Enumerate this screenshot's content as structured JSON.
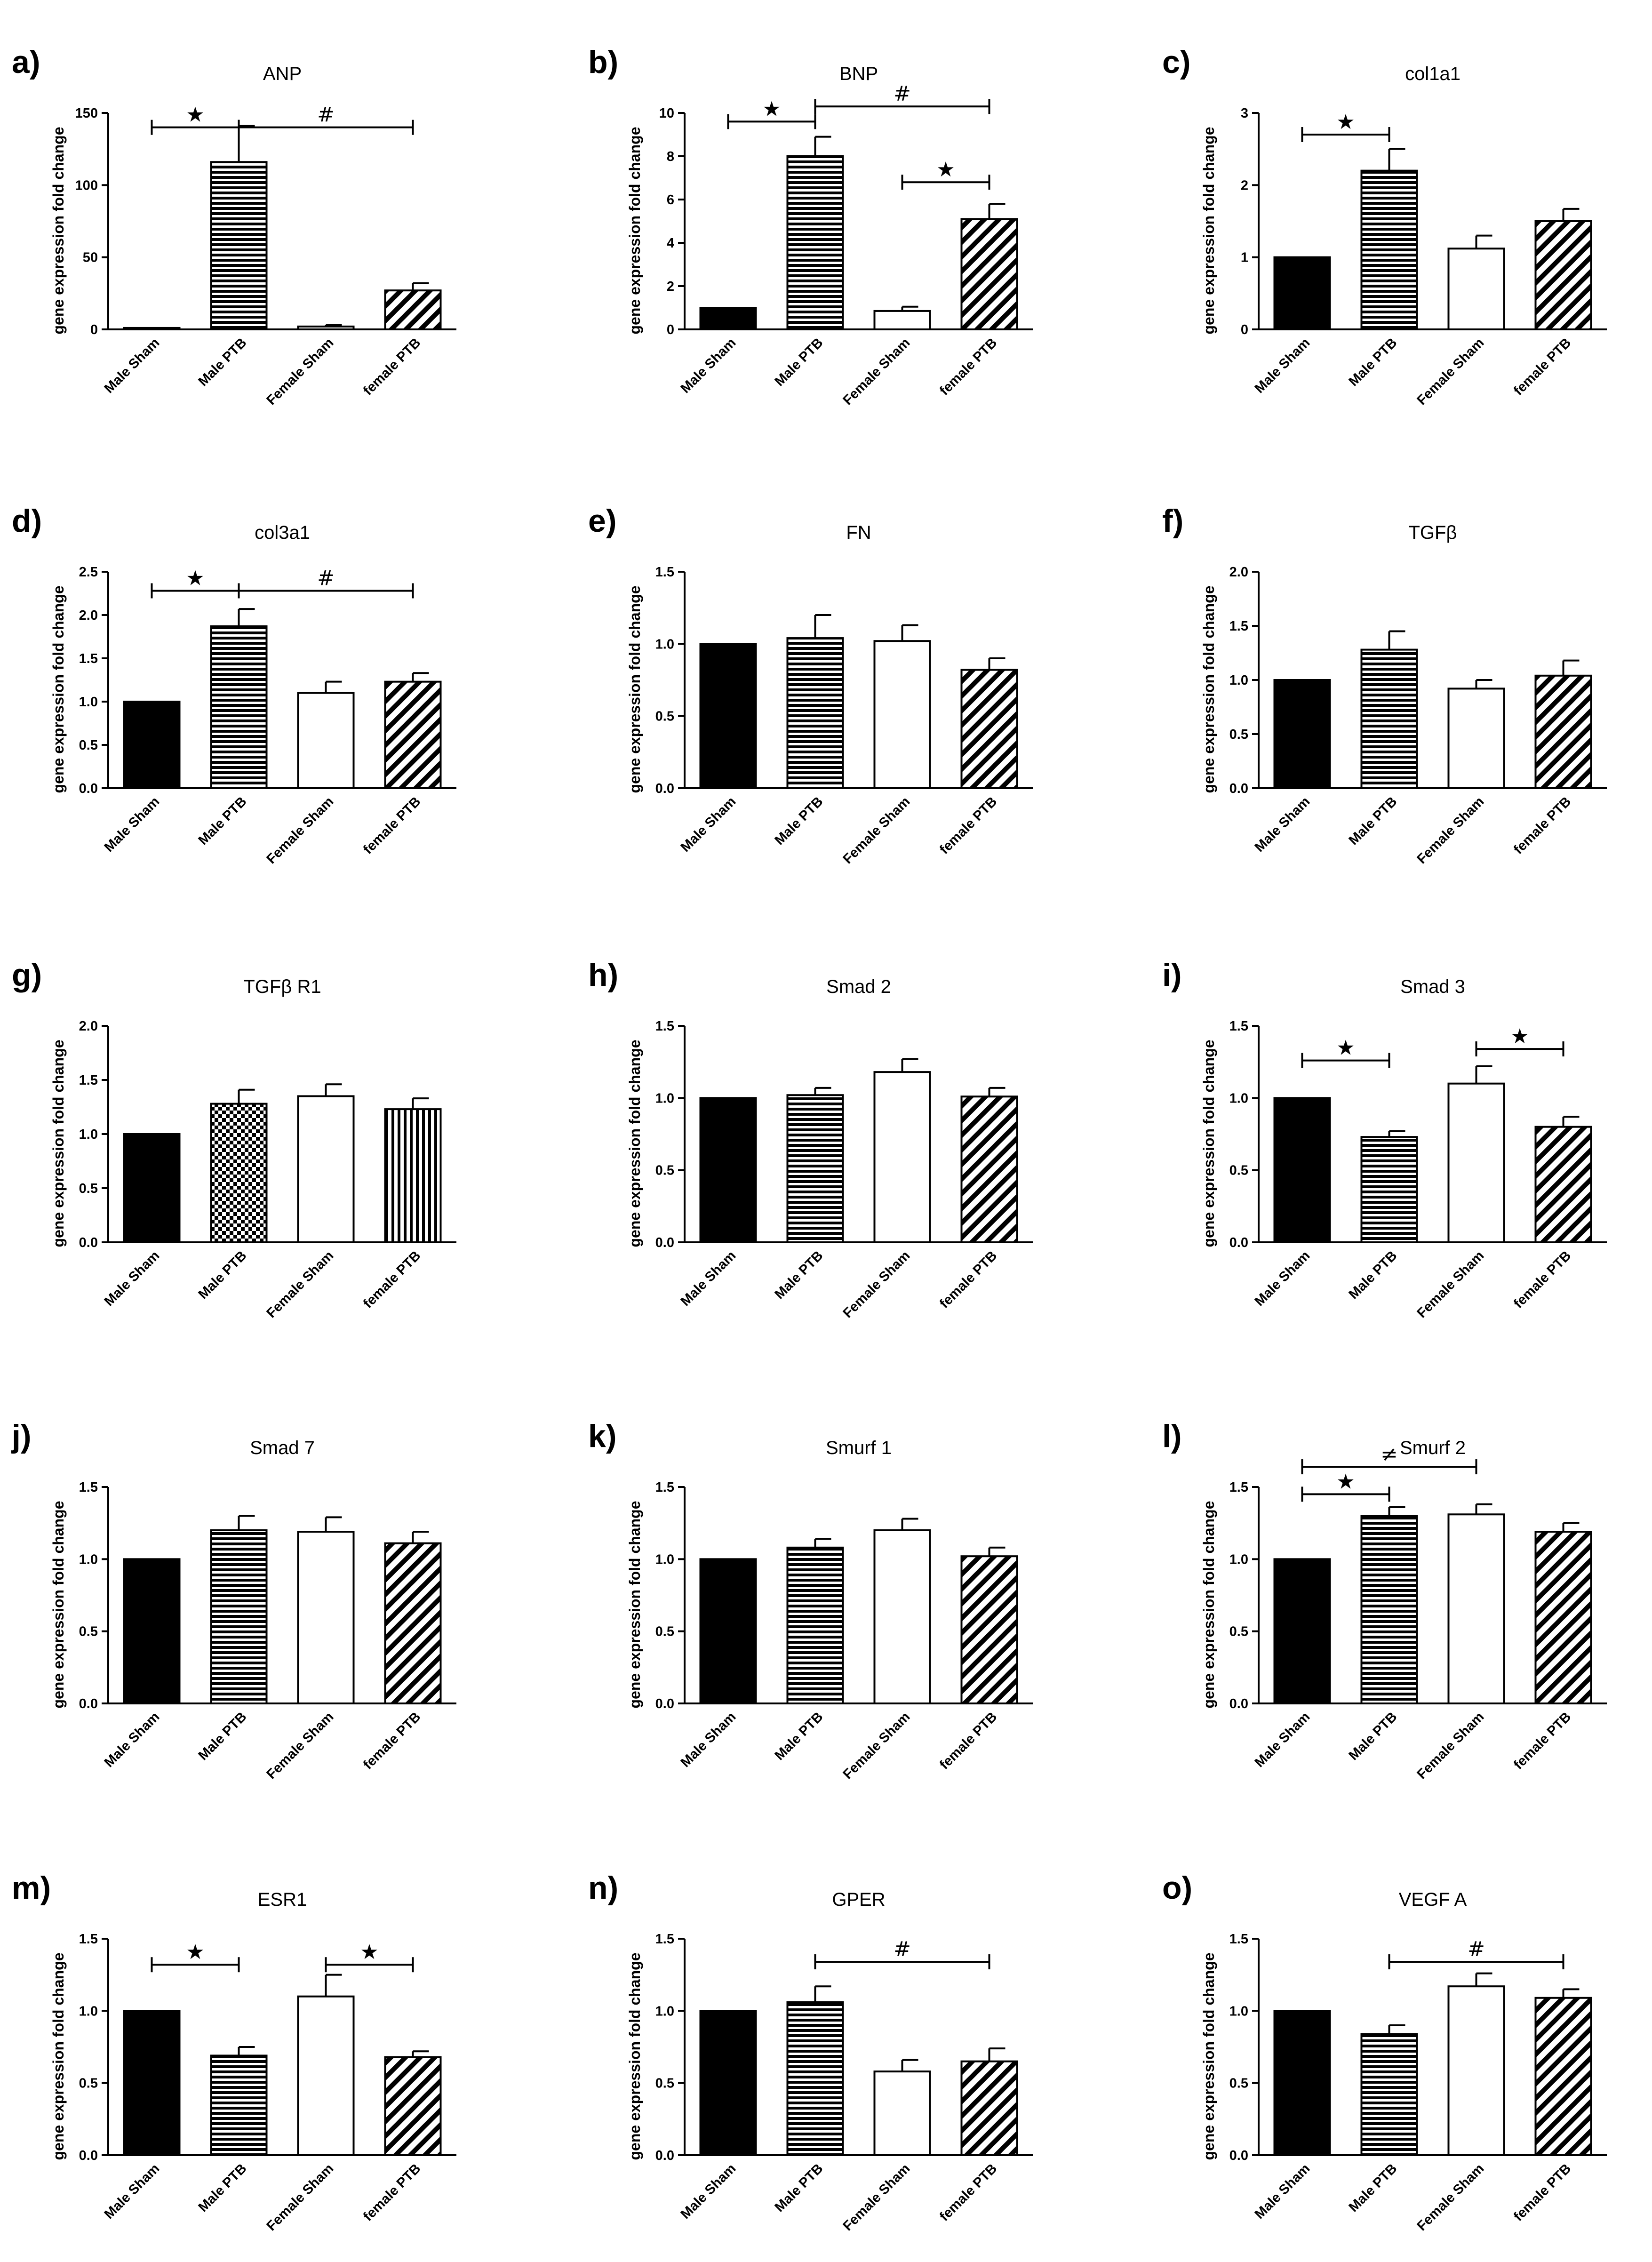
{
  "figure": {
    "y_axis_label": "gene expression fold change",
    "groups": [
      "Male Sham",
      "Male PTB",
      "Female Sham",
      "female PTB"
    ]
  },
  "chart_data": [
    {
      "id": "a",
      "panel_label": "a)",
      "type": "bar",
      "title": "ANP",
      "categories": [
        "Male Sham",
        "Male PTB",
        "Female Sham",
        "female PTB"
      ],
      "values": [
        1,
        116,
        2,
        27
      ],
      "errors": [
        0,
        25,
        1,
        5
      ],
      "ylim": [
        0,
        150
      ],
      "yticks": [
        "0",
        "50",
        "100",
        "150"
      ],
      "ylabel": "gene expression fold change",
      "significance": [
        {
          "from": 0,
          "to": 1,
          "symbol": "★",
          "level": 140
        },
        {
          "from": 1,
          "to": 3,
          "symbol": "#",
          "level": 140
        }
      ]
    },
    {
      "id": "b",
      "panel_label": "b)",
      "type": "bar",
      "title": "BNP",
      "categories": [
        "Male Sham",
        "Male PTB",
        "Female Sham",
        "female PTB"
      ],
      "values": [
        1,
        8,
        0.85,
        5.1
      ],
      "errors": [
        0,
        0.9,
        0.2,
        0.7
      ],
      "ylim": [
        0,
        10
      ],
      "yticks": [
        "0",
        "2",
        "4",
        "6",
        "8",
        "10"
      ],
      "ylabel": "gene expression fold change",
      "significance": [
        {
          "from": 0,
          "to": 1,
          "symbol": "★",
          "level": 9.6
        },
        {
          "from": 1,
          "to": 3,
          "symbol": "#",
          "level": 10.3
        },
        {
          "from": 2,
          "to": 3,
          "symbol": "★",
          "level": 6.8
        }
      ]
    },
    {
      "id": "c",
      "panel_label": "c)",
      "type": "bar",
      "title": "col1a1",
      "categories": [
        "Male Sham",
        "Male PTB",
        "Female Sham",
        "female PTB"
      ],
      "values": [
        1,
        2.2,
        1.12,
        1.5
      ],
      "errors": [
        0,
        0.3,
        0.18,
        0.17
      ],
      "ylim": [
        0,
        3
      ],
      "yticks": [
        "0",
        "1",
        "2",
        "3"
      ],
      "ylabel": "gene expression fold change",
      "significance": [
        {
          "from": 0,
          "to": 1,
          "symbol": "★",
          "level": 2.7
        }
      ]
    },
    {
      "id": "d",
      "panel_label": "d)",
      "type": "bar",
      "title": "col3a1",
      "categories": [
        "Male Sham",
        "Male PTB",
        "Female Sham",
        "female PTB"
      ],
      "values": [
        1,
        1.87,
        1.1,
        1.23
      ],
      "errors": [
        0,
        0.2,
        0.13,
        0.1
      ],
      "ylim": [
        0,
        2.5
      ],
      "yticks": [
        "0.0",
        "0.5",
        "1.0",
        "1.5",
        "2.0",
        "2.5"
      ],
      "ylabel": "gene expression fold change",
      "significance": [
        {
          "from": 0,
          "to": 1,
          "symbol": "★",
          "level": 2.28
        },
        {
          "from": 1,
          "to": 3,
          "symbol": "#",
          "level": 2.28
        }
      ]
    },
    {
      "id": "e",
      "panel_label": "e)",
      "type": "bar",
      "title": "FN",
      "categories": [
        "Male Sham",
        "Male PTB",
        "Female Sham",
        "female PTB"
      ],
      "values": [
        1,
        1.04,
        1.02,
        0.82
      ],
      "errors": [
        0,
        0.16,
        0.11,
        0.08
      ],
      "ylim": [
        0,
        1.5
      ],
      "yticks": [
        "0.0",
        "0.5",
        "1.0",
        "1.5"
      ],
      "ylabel": "gene expression fold change",
      "significance": []
    },
    {
      "id": "f",
      "panel_label": "f)",
      "type": "bar",
      "title": "TGFβ",
      "categories": [
        "Male Sham",
        "Male PTB",
        "Female Sham",
        "female PTB"
      ],
      "values": [
        1,
        1.28,
        0.92,
        1.04
      ],
      "errors": [
        0,
        0.17,
        0.08,
        0.14
      ],
      "ylim": [
        0,
        2
      ],
      "yticks": [
        "0.0",
        "0.5",
        "1.0",
        "1.5",
        "2.0"
      ],
      "ylabel": "gene expression fold change",
      "significance": []
    },
    {
      "id": "g",
      "panel_label": "g)",
      "type": "bar",
      "title": "TGFβ R1",
      "categories": [
        "Male Sham",
        "Male PTB",
        "Female Sham",
        "female PTB"
      ],
      "values": [
        1,
        1.28,
        1.35,
        1.23
      ],
      "errors": [
        0,
        0.13,
        0.11,
        0.1
      ],
      "ylim": [
        0,
        2
      ],
      "yticks": [
        "0.0",
        "0.5",
        "1.0",
        "1.5",
        "2.0"
      ],
      "ylabel": "gene expression fold change",
      "significance": []
    },
    {
      "id": "h",
      "panel_label": "h)",
      "type": "bar",
      "title": "Smad 2",
      "categories": [
        "Male Sham",
        "Male PTB",
        "Female Sham",
        "female PTB"
      ],
      "values": [
        1,
        1.02,
        1.18,
        1.01
      ],
      "errors": [
        0,
        0.05,
        0.09,
        0.06
      ],
      "ylim": [
        0,
        1.5
      ],
      "yticks": [
        "0.0",
        "0.5",
        "1.0",
        "1.5"
      ],
      "ylabel": "gene expression fold change",
      "significance": []
    },
    {
      "id": "i",
      "panel_label": "i)",
      "type": "bar",
      "title": "Smad 3",
      "categories": [
        "Male Sham",
        "Male PTB",
        "Female Sham",
        "female PTB"
      ],
      "values": [
        1,
        0.73,
        1.1,
        0.8
      ],
      "errors": [
        0,
        0.04,
        0.12,
        0.07
      ],
      "ylim": [
        0,
        1.5
      ],
      "yticks": [
        "0.0",
        "0.5",
        "1.0",
        "1.5"
      ],
      "ylabel": "gene expression fold change",
      "significance": [
        {
          "from": 0,
          "to": 1,
          "symbol": "★",
          "level": 1.26
        },
        {
          "from": 2,
          "to": 3,
          "symbol": "★",
          "level": 1.34
        }
      ]
    },
    {
      "id": "j",
      "panel_label": "j)",
      "type": "bar",
      "title": "Smad 7",
      "categories": [
        "Male Sham",
        "Male PTB",
        "Female Sham",
        "female PTB"
      ],
      "values": [
        1,
        1.2,
        1.19,
        1.11
      ],
      "errors": [
        0,
        0.1,
        0.1,
        0.08
      ],
      "ylim": [
        0,
        1.5
      ],
      "yticks": [
        "0.0",
        "0.5",
        "1.0",
        "1.5"
      ],
      "ylabel": "gene expression fold change",
      "significance": []
    },
    {
      "id": "k",
      "panel_label": "k)",
      "type": "bar",
      "title": "Smurf 1",
      "categories": [
        "Male Sham",
        "Male PTB",
        "Female Sham",
        "female PTB"
      ],
      "values": [
        1,
        1.08,
        1.2,
        1.02
      ],
      "errors": [
        0,
        0.06,
        0.08,
        0.06
      ],
      "ylim": [
        0,
        1.5
      ],
      "yticks": [
        "0.0",
        "0.5",
        "1.0",
        "1.5"
      ],
      "ylabel": "gene expression fold change",
      "significance": []
    },
    {
      "id": "l",
      "panel_label": "l)",
      "type": "bar",
      "title": "Smurf 2",
      "categories": [
        "Male Sham",
        "Male PTB",
        "Female Sham",
        "female PTB"
      ],
      "values": [
        1,
        1.3,
        1.31,
        1.19
      ],
      "errors": [
        0,
        0.06,
        0.07,
        0.06
      ],
      "ylim": [
        0,
        1.5
      ],
      "yticks": [
        "0.0",
        "0.5",
        "1.0",
        "1.5"
      ],
      "ylabel": "gene expression fold change",
      "significance": [
        {
          "from": 0,
          "to": 1,
          "symbol": "★",
          "level": 1.45
        },
        {
          "from": 0,
          "to": 2,
          "symbol": "≠",
          "level": 1.64
        }
      ]
    },
    {
      "id": "m",
      "panel_label": "m)",
      "type": "bar",
      "title": "ESR1",
      "categories": [
        "Male Sham",
        "Male PTB",
        "Female Sham",
        "female PTB"
      ],
      "values": [
        1,
        0.69,
        1.1,
        0.68
      ],
      "errors": [
        0,
        0.06,
        0.15,
        0.04
      ],
      "ylim": [
        0,
        1.5
      ],
      "yticks": [
        "0.0",
        "0.5",
        "1.0",
        "1.5"
      ],
      "ylabel": "gene expression fold change",
      "significance": [
        {
          "from": 0,
          "to": 1,
          "symbol": "★",
          "level": 1.32
        },
        {
          "from": 2,
          "to": 3,
          "symbol": "★",
          "level": 1.32
        }
      ]
    },
    {
      "id": "n",
      "panel_label": "n)",
      "type": "bar",
      "title": "GPER",
      "categories": [
        "Male Sham",
        "Male PTB",
        "Female Sham",
        "female PTB"
      ],
      "values": [
        1,
        1.06,
        0.58,
        0.65
      ],
      "errors": [
        0,
        0.11,
        0.08,
        0.09
      ],
      "ylim": [
        0,
        1.5
      ],
      "yticks": [
        "0.0",
        "0.5",
        "1.0",
        "1.5"
      ],
      "ylabel": "gene expression fold change",
      "significance": [
        {
          "from": 1,
          "to": 3,
          "symbol": "#",
          "level": 1.34
        }
      ]
    },
    {
      "id": "o",
      "panel_label": "o)",
      "type": "bar",
      "title": "VEGF A",
      "categories": [
        "Male Sham",
        "Male PTB",
        "Female Sham",
        "female PTB"
      ],
      "values": [
        1,
        0.84,
        1.17,
        1.09
      ],
      "errors": [
        0,
        0.06,
        0.09,
        0.06
      ],
      "ylim": [
        0,
        1.5
      ],
      "yticks": [
        "0.0",
        "0.5",
        "1.0",
        "1.5"
      ],
      "ylabel": "gene expression fold change",
      "significance": [
        {
          "from": 1,
          "to": 3,
          "symbol": "#",
          "level": 1.34
        }
      ]
    }
  ]
}
